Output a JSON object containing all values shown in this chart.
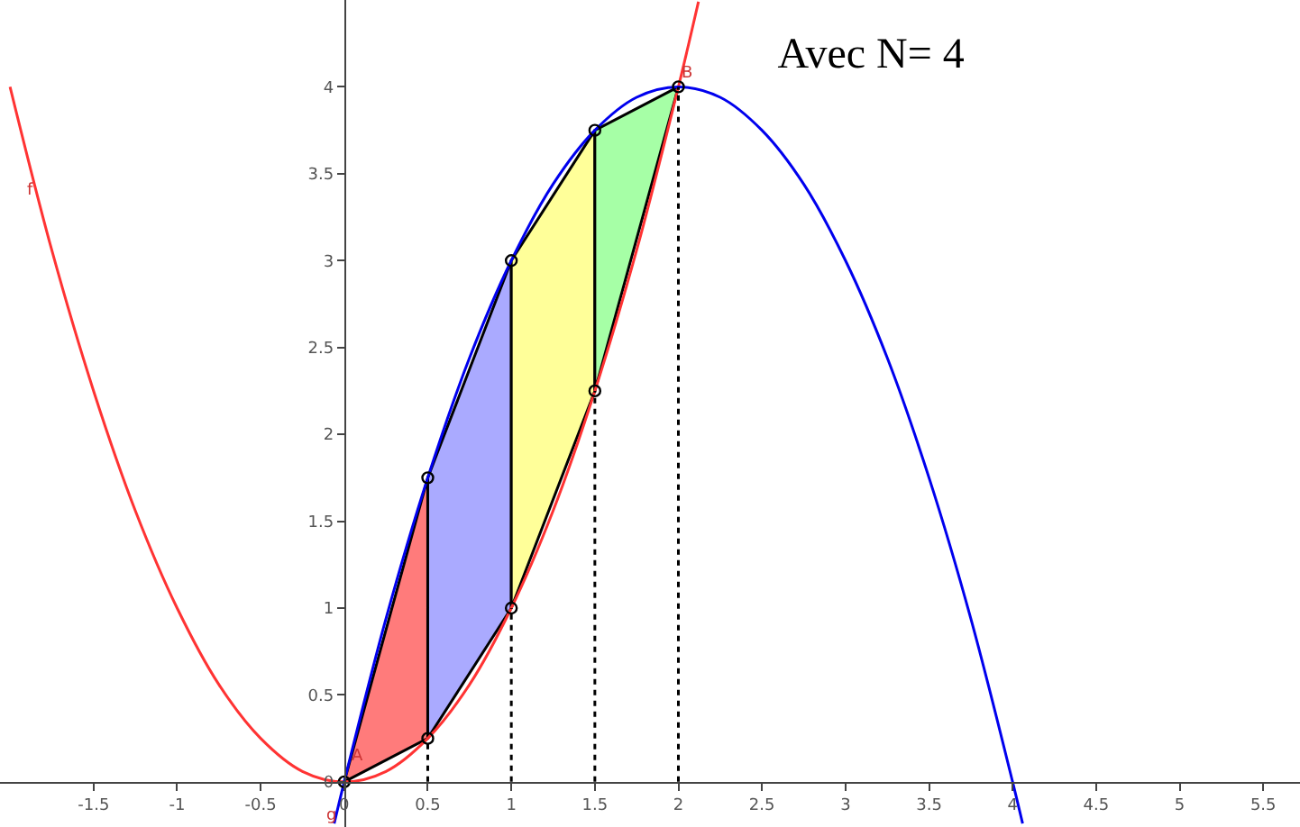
{
  "chart_data": {
    "type": "line",
    "title": "Avec N= 4",
    "xlim": [
      -2.06,
      5.72
    ],
    "ylim": [
      -0.26,
      4.5
    ],
    "xticks": [
      -1.5,
      -1,
      -0.5,
      0,
      0.5,
      1,
      1.5,
      2,
      2.5,
      3,
      3.5,
      4,
      4.5,
      5,
      5.5
    ],
    "yticks": [
      0,
      0.5,
      1,
      1.5,
      2,
      2.5,
      3,
      3.5,
      4
    ],
    "grid": false,
    "series": [
      {
        "type": "area",
        "color": "#ff7b7b",
        "x": [
          0,
          0.5,
          0.5,
          0
        ],
        "values": [
          0,
          1.75,
          0.25,
          0
        ]
      },
      {
        "type": "area",
        "color": "#aaaaff",
        "x": [
          0.5,
          0.5,
          1,
          1,
          0.5
        ],
        "values": [
          0.25,
          1.75,
          3,
          1,
          0.25
        ]
      },
      {
        "type": "area",
        "color": "#ffff99",
        "x": [
          1,
          1,
          1.5,
          1.5,
          1
        ],
        "values": [
          1,
          3,
          3.75,
          2.25,
          1
        ]
      },
      {
        "type": "area",
        "color": "#a6ffa6",
        "x": [
          1.5,
          1.5,
          2,
          1.5
        ],
        "values": [
          2.25,
          3.75,
          4,
          2.25
        ]
      },
      {
        "color": "#ff3333",
        "x": [
          -2,
          -1.75,
          -1.5,
          -1.25,
          -1,
          -0.75,
          -0.5,
          -0.25,
          0,
          0.25,
          0.5,
          0.75,
          1,
          1.25,
          1.5,
          1.75,
          2,
          2.12
        ],
        "values": [
          4,
          3.06,
          2.25,
          1.56,
          1,
          0.56,
          0.25,
          0.06,
          0,
          0.06,
          0.25,
          0.56,
          1,
          1.56,
          2.25,
          3.06,
          4,
          4.49
        ]
      },
      {
        "color": "#0000ee",
        "x": [
          -0.06,
          0,
          0.25,
          0.5,
          0.75,
          1,
          1.25,
          1.5,
          1.75,
          2,
          2.25,
          2.5,
          2.75,
          3,
          3.25,
          3.5,
          3.75,
          4,
          4.06
        ],
        "values": [
          -0.24,
          0,
          0.94,
          1.75,
          2.44,
          3,
          3.44,
          3.75,
          3.94,
          4,
          3.94,
          3.75,
          3.44,
          3,
          2.44,
          1.75,
          0.94,
          0,
          -0.24
        ]
      },
      {
        "type": "line",
        "color": "#000000",
        "line_style": "dotted",
        "x": [
          0.5,
          0.5
        ],
        "values": [
          0,
          0.25
        ]
      },
      {
        "type": "line",
        "color": "#000000",
        "line_style": "dotted",
        "x": [
          1,
          1
        ],
        "values": [
          0,
          1
        ]
      },
      {
        "type": "line",
        "color": "#000000",
        "line_style": "dotted",
        "x": [
          1.5,
          1.5
        ],
        "values": [
          0,
          2.25
        ]
      },
      {
        "type": "line",
        "color": "#000000",
        "line_style": "dotted",
        "x": [
          2,
          2
        ],
        "values": [
          0,
          4
        ]
      },
      {
        "type": "scatter",
        "color": "#000000",
        "marker": "circle",
        "x": [
          0,
          0.5,
          0.5,
          1,
          1,
          1.5,
          1.5,
          2
        ],
        "values": [
          0,
          0.25,
          1.75,
          1,
          3,
          2.25,
          3.75,
          4
        ]
      }
    ],
    "annotations": [
      {
        "text": "f",
        "x": -1.88,
        "y": 3.4
      },
      {
        "text": "g",
        "x": -0.07,
        "y": -0.2
      },
      {
        "text": "A",
        "x": 0.08,
        "y": 0.14
      },
      {
        "text": "B",
        "x": 2.05,
        "y": 4.08
      }
    ]
  }
}
